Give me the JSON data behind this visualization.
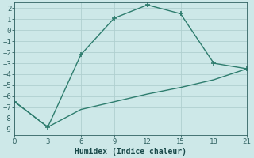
{
  "xlabel": "Humidex (Indice chaleur)",
  "line1_x": [
    0,
    3,
    6,
    9,
    12,
    15,
    18,
    21
  ],
  "line1_y": [
    -6.5,
    -8.8,
    -2.2,
    1.1,
    2.3,
    1.5,
    -3.0,
    -3.5
  ],
  "line2_x": [
    0,
    3,
    6,
    9,
    12,
    15,
    18,
    21
  ],
  "line2_y": [
    -6.5,
    -8.8,
    -7.2,
    -6.5,
    -5.8,
    -5.2,
    -4.5,
    -3.5
  ],
  "xlim": [
    0,
    21
  ],
  "ylim": [
    -9.5,
    2.5
  ],
  "xticks": [
    0,
    3,
    6,
    9,
    12,
    15,
    18,
    21
  ],
  "yticks": [
    -9,
    -8,
    -7,
    -6,
    -5,
    -4,
    -3,
    -2,
    -1,
    0,
    1,
    2
  ],
  "line_color": "#2e7d6e",
  "bg_color": "#cde8e8",
  "grid_color": "#b0cfcf",
  "tick_color": "#2e6060",
  "label_color": "#1a4a4a",
  "marker": "+",
  "markersize": 5,
  "linewidth": 1.0,
  "tick_labelsize": 6.5,
  "xlabel_fontsize": 7.0
}
